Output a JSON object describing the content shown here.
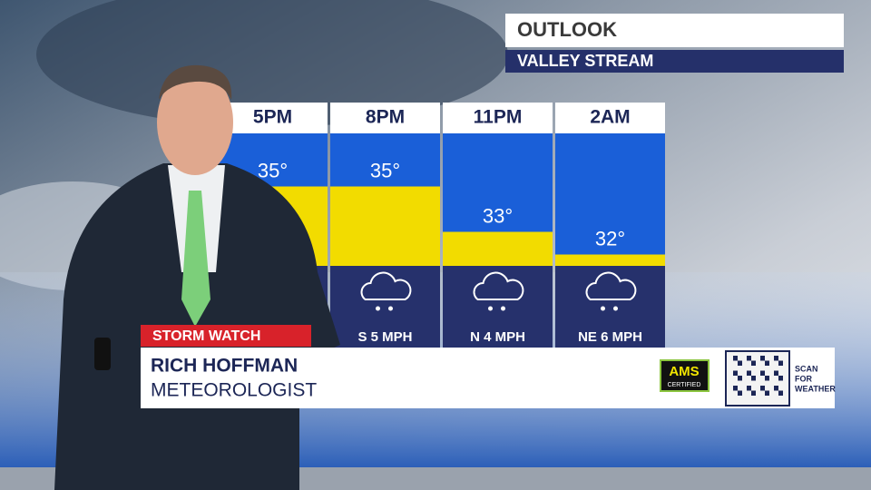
{
  "chart_data": {
    "type": "bar",
    "title": "OUTLOOK",
    "subtitle": "VALLEY STREAM",
    "categories": [
      "5PM",
      "8PM",
      "11PM",
      "2AM"
    ],
    "values": [
      35,
      35,
      33,
      32
    ],
    "value_labels": [
      "35°",
      "35°",
      "33°",
      "32°"
    ],
    "wind": [
      null,
      "S 5 MPH",
      "N 4 MPH",
      "NE 6 MPH"
    ],
    "ylim": [
      31.5,
      37.5
    ],
    "color": "#f2dc00"
  },
  "lower_third": {
    "banner": "STORM WATCH",
    "name": "RICH HOFFMAN",
    "role": "METEOROLOGIST",
    "badge": "AMS",
    "badge_sub": "CERTIFIED",
    "qr_caption": [
      "SCAN",
      "FOR",
      "WEATHER"
    ]
  }
}
